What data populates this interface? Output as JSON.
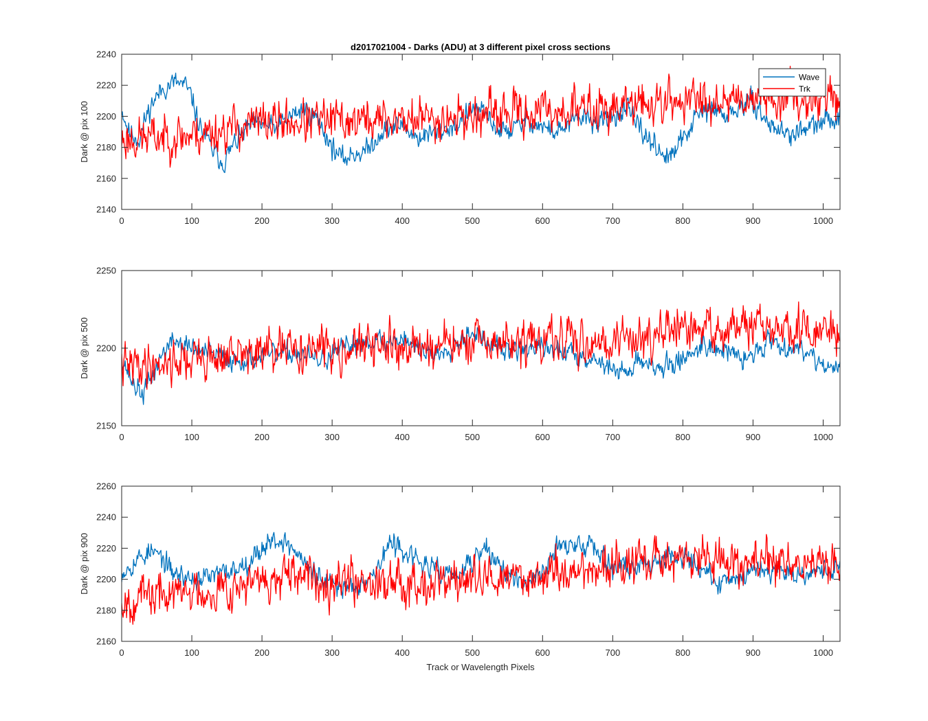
{
  "figure": {
    "title": "d2017021004 - Darks (ADU) at 3 different pixel cross sections",
    "xlabel": "Track or Wavelength Pixels"
  },
  "colors": {
    "wave": "#0072BD",
    "trk": "#FF0000",
    "axes": "#262626",
    "background": "#FFFFFF"
  },
  "chart_data": [
    {
      "type": "line",
      "title": "d2017021004 - Darks (ADU) at 3 different pixel cross sections",
      "xlabel": "",
      "ylabel": "Dark @ pix 100",
      "xlim": [
        0,
        1024
      ],
      "ylim": [
        2140,
        2240
      ],
      "xticks": [
        0,
        100,
        200,
        300,
        400,
        500,
        600,
        700,
        800,
        900,
        1000
      ],
      "yticks": [
        2140,
        2160,
        2180,
        2200,
        2220,
        2240
      ],
      "legend": {
        "position": "top-right",
        "entries": [
          "Wave",
          "Trk"
        ]
      },
      "series": [
        {
          "name": "Wave",
          "color": "#0072BD",
          "noise": 5,
          "seed": 11,
          "x": [
            0,
            10,
            25,
            35,
            45,
            60,
            75,
            90,
            100,
            110,
            130,
            145,
            160,
            180,
            200,
            220,
            240,
            260,
            280,
            300,
            315,
            330,
            350,
            370,
            400,
            420,
            450,
            480,
            500,
            520,
            540,
            560,
            580,
            600,
            620,
            640,
            660,
            680,
            700,
            720,
            740,
            760,
            780,
            800,
            820,
            840,
            860,
            880,
            900,
            920,
            950,
            980,
            1000,
            1024
          ],
          "values": [
            2205,
            2190,
            2185,
            2200,
            2210,
            2218,
            2222,
            2220,
            2212,
            2195,
            2178,
            2170,
            2182,
            2193,
            2195,
            2192,
            2200,
            2205,
            2198,
            2180,
            2172,
            2176,
            2178,
            2190,
            2195,
            2186,
            2190,
            2195,
            2205,
            2200,
            2190,
            2192,
            2198,
            2193,
            2190,
            2195,
            2200,
            2195,
            2200,
            2205,
            2190,
            2182,
            2172,
            2185,
            2200,
            2205,
            2200,
            2205,
            2210,
            2196,
            2188,
            2192,
            2196,
            2200
          ]
        },
        {
          "name": "Trk",
          "color": "#FF0000",
          "noise": 10,
          "seed": 23,
          "x": [
            0,
            100,
            200,
            300,
            400,
            500,
            600,
            700,
            800,
            900,
            1024
          ],
          "values": [
            2185,
            2188,
            2196,
            2197,
            2198,
            2200,
            2203,
            2206,
            2210,
            2213,
            2212
          ]
        }
      ]
    },
    {
      "type": "line",
      "title": "",
      "xlabel": "",
      "ylabel": "Dark @ pix 500",
      "xlim": [
        0,
        1024
      ],
      "ylim": [
        2150,
        2250
      ],
      "xticks": [
        0,
        100,
        200,
        300,
        400,
        500,
        600,
        700,
        800,
        900,
        1000
      ],
      "yticks": [
        2150,
        2200,
        2250
      ],
      "series": [
        {
          "name": "Wave",
          "color": "#0072BD",
          "noise": 5,
          "seed": 37,
          "x": [
            0,
            15,
            30,
            45,
            60,
            75,
            100,
            130,
            160,
            200,
            250,
            280,
            300,
            330,
            360,
            380,
            400,
            420,
            450,
            480,
            500,
            520,
            550,
            580,
            600,
            640,
            660,
            690,
            710,
            730,
            750,
            770,
            800,
            830,
            860,
            890,
            920,
            950,
            980,
            1000,
            1024
          ],
          "values": [
            2195,
            2178,
            2170,
            2183,
            2198,
            2205,
            2200,
            2196,
            2192,
            2195,
            2197,
            2192,
            2195,
            2203,
            2206,
            2203,
            2208,
            2200,
            2196,
            2205,
            2212,
            2203,
            2198,
            2200,
            2200,
            2197,
            2195,
            2190,
            2183,
            2190,
            2192,
            2186,
            2193,
            2203,
            2198,
            2192,
            2205,
            2201,
            2198,
            2190,
            2185
          ]
        },
        {
          "name": "Trk",
          "color": "#FF0000",
          "noise": 10,
          "seed": 41,
          "x": [
            0,
            100,
            200,
            300,
            400,
            500,
            600,
            700,
            800,
            900,
            1024
          ],
          "values": [
            2188,
            2193,
            2197,
            2200,
            2201,
            2202,
            2204,
            2205,
            2211,
            2213,
            2209
          ]
        }
      ]
    },
    {
      "type": "line",
      "title": "",
      "xlabel": "Track or Wavelength Pixels",
      "ylabel": "Dark @ pix 900",
      "xlim": [
        0,
        1024
      ],
      "ylim": [
        2160,
        2260
      ],
      "xticks": [
        0,
        100,
        200,
        300,
        400,
        500,
        600,
        700,
        800,
        900,
        1000
      ],
      "yticks": [
        2160,
        2180,
        2200,
        2220,
        2240,
        2260
      ],
      "series": [
        {
          "name": "Wave",
          "color": "#0072BD",
          "noise": 5,
          "seed": 53,
          "x": [
            0,
            20,
            40,
            55,
            70,
            100,
            130,
            160,
            190,
            210,
            230,
            250,
            270,
            290,
            310,
            330,
            360,
            380,
            400,
            420,
            450,
            480,
            500,
            520,
            540,
            570,
            600,
            620,
            650,
            670,
            700,
            730,
            760,
            790,
            820,
            850,
            880,
            910,
            940,
            970,
            1000,
            1024
          ],
          "values": [
            2205,
            2212,
            2218,
            2215,
            2205,
            2200,
            2202,
            2206,
            2215,
            2225,
            2225,
            2217,
            2205,
            2198,
            2195,
            2196,
            2203,
            2222,
            2220,
            2212,
            2205,
            2202,
            2212,
            2220,
            2208,
            2195,
            2205,
            2222,
            2220,
            2225,
            2208,
            2208,
            2212,
            2218,
            2210,
            2196,
            2202,
            2208,
            2206,
            2204,
            2206,
            2208
          ]
        },
        {
          "name": "Trk",
          "color": "#FF0000",
          "noise": 10,
          "seed": 67,
          "x": [
            0,
            100,
            200,
            300,
            400,
            500,
            600,
            700,
            800,
            900,
            1024
          ],
          "values": [
            2187,
            2192,
            2198,
            2201,
            2199,
            2199,
            2203,
            2208,
            2214,
            2211,
            2209
          ]
        }
      ]
    }
  ]
}
